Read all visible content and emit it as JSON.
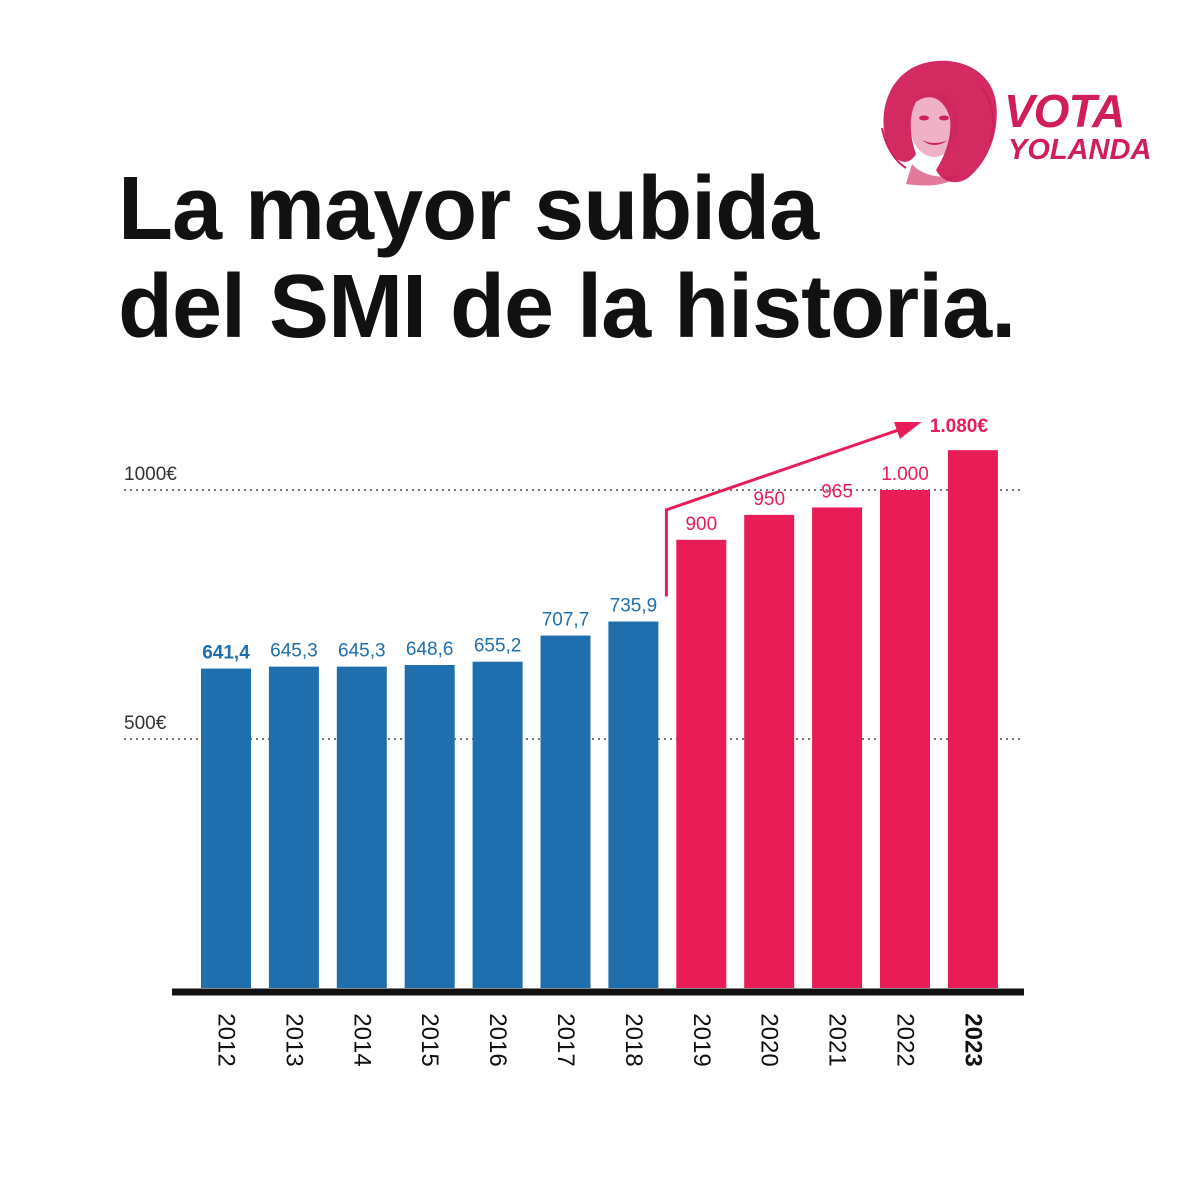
{
  "headline": {
    "line1": "La mayor subida",
    "line2": "del SMI de la historia."
  },
  "brand": {
    "line1": "VOTA",
    "line2": "YOLANDA",
    "portrait_icon": "woman-portrait-icon",
    "color": "#d01f58"
  },
  "colors": {
    "blue": "#1f6fae",
    "pink": "#e81c57",
    "text": "#111111"
  },
  "chart_data": {
    "type": "bar",
    "categories": [
      "2012",
      "2013",
      "2014",
      "2015",
      "2016",
      "2017",
      "2018",
      "2019",
      "2020",
      "2021",
      "2022",
      "2023"
    ],
    "values": [
      641.4,
      645.3,
      645.3,
      648.6,
      655.2,
      707.7,
      735.9,
      900,
      950,
      965,
      1000,
      1080
    ],
    "value_labels": [
      "641,4",
      "645,3",
      "645,3",
      "648,6",
      "655,2",
      "707,7",
      "735,9",
      "900",
      "950",
      "965",
      "1.000",
      "1.080€"
    ],
    "bar_colors": [
      "#1f6fae",
      "#1f6fae",
      "#1f6fae",
      "#1f6fae",
      "#1f6fae",
      "#1f6fae",
      "#1f6fae",
      "#e81c57",
      "#e81c57",
      "#e81c57",
      "#e81c57",
      "#e81c57"
    ],
    "bold_labels": [
      0,
      11
    ],
    "gridlines": [
      {
        "value": 500,
        "label": "500€"
      },
      {
        "value": 1000,
        "label": "1000€"
      }
    ],
    "annotation": {
      "type": "arrow",
      "from": "2018",
      "to": "2023"
    },
    "ylim": [
      0,
      1100
    ],
    "legend": "none"
  }
}
